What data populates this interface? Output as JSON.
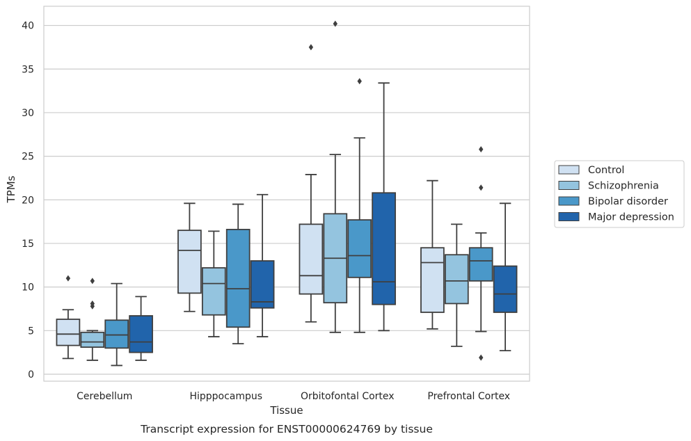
{
  "caption": "Transcript expression for ENST00000624769 by tissue",
  "chart_data": {
    "type": "box",
    "title": "",
    "xlabel": "Tissue",
    "ylabel": "TPMs",
    "ylim": [
      -0.8,
      42.2
    ],
    "yticks": [
      0,
      5,
      10,
      15,
      20,
      25,
      30,
      35,
      40
    ],
    "grid": true,
    "legend_position": "right",
    "categories": [
      "Cerebellum",
      "Hipppocampus",
      "Orbitofontal Cortex",
      "Prefrontal Cortex"
    ],
    "series": [
      {
        "name": "Control",
        "color": "#d0e1f2",
        "boxes": [
          {
            "whisker_low": 1.8,
            "q1": 3.3,
            "median": 4.6,
            "q3": 6.3,
            "whisker_high": 7.4,
            "outliers": [
              11.0
            ]
          },
          {
            "whisker_low": 7.2,
            "q1": 9.3,
            "median": 14.2,
            "q3": 16.5,
            "whisker_high": 19.6,
            "outliers": []
          },
          {
            "whisker_low": 6.0,
            "q1": 9.2,
            "median": 11.3,
            "q3": 17.2,
            "whisker_high": 22.9,
            "outliers": [
              37.5
            ]
          },
          {
            "whisker_low": 5.2,
            "q1": 7.1,
            "median": 12.8,
            "q3": 14.5,
            "whisker_high": 22.2,
            "outliers": []
          }
        ]
      },
      {
        "name": "Schizophrenia",
        "color": "#94c4df",
        "boxes": [
          {
            "whisker_low": 1.6,
            "q1": 3.1,
            "median": 3.7,
            "q3": 4.8,
            "whisker_high": 5.0,
            "outliers": [
              7.8,
              8.1,
              10.7
            ]
          },
          {
            "whisker_low": 4.3,
            "q1": 6.8,
            "median": 10.4,
            "q3": 12.2,
            "whisker_high": 16.4,
            "outliers": []
          },
          {
            "whisker_low": 4.8,
            "q1": 8.2,
            "median": 13.3,
            "q3": 18.4,
            "whisker_high": 25.2,
            "outliers": [
              40.2
            ]
          },
          {
            "whisker_low": 3.2,
            "q1": 8.1,
            "median": 10.7,
            "q3": 13.7,
            "whisker_high": 17.2,
            "outliers": []
          }
        ]
      },
      {
        "name": "Bipolar disorder",
        "color": "#4a98c9",
        "boxes": [
          {
            "whisker_low": 1.0,
            "q1": 3.0,
            "median": 4.5,
            "q3": 6.2,
            "whisker_high": 10.4,
            "outliers": []
          },
          {
            "whisker_low": 3.5,
            "q1": 5.4,
            "median": 9.8,
            "q3": 16.6,
            "whisker_high": 19.5,
            "outliers": []
          },
          {
            "whisker_low": 4.8,
            "q1": 11.1,
            "median": 13.6,
            "q3": 17.7,
            "whisker_high": 27.1,
            "outliers": [
              33.6
            ]
          },
          {
            "whisker_low": 4.9,
            "q1": 10.7,
            "median": 13.0,
            "q3": 14.5,
            "whisker_high": 16.2,
            "outliers": [
              1.9,
              21.4,
              25.8
            ]
          }
        ]
      },
      {
        "name": "Major depression",
        "color": "#2164ab",
        "boxes": [
          {
            "whisker_low": 1.6,
            "q1": 2.5,
            "median": 3.7,
            "q3": 6.7,
            "whisker_high": 8.9,
            "outliers": []
          },
          {
            "whisker_low": 4.3,
            "q1": 7.6,
            "median": 8.3,
            "q3": 13.0,
            "whisker_high": 20.6,
            "outliers": []
          },
          {
            "whisker_low": 5.0,
            "q1": 8.0,
            "median": 10.6,
            "q3": 20.8,
            "whisker_high": 33.4,
            "outliers": []
          },
          {
            "whisker_low": 2.7,
            "q1": 7.1,
            "median": 9.2,
            "q3": 12.4,
            "whisker_high": 19.6,
            "outliers": []
          }
        ]
      }
    ]
  }
}
